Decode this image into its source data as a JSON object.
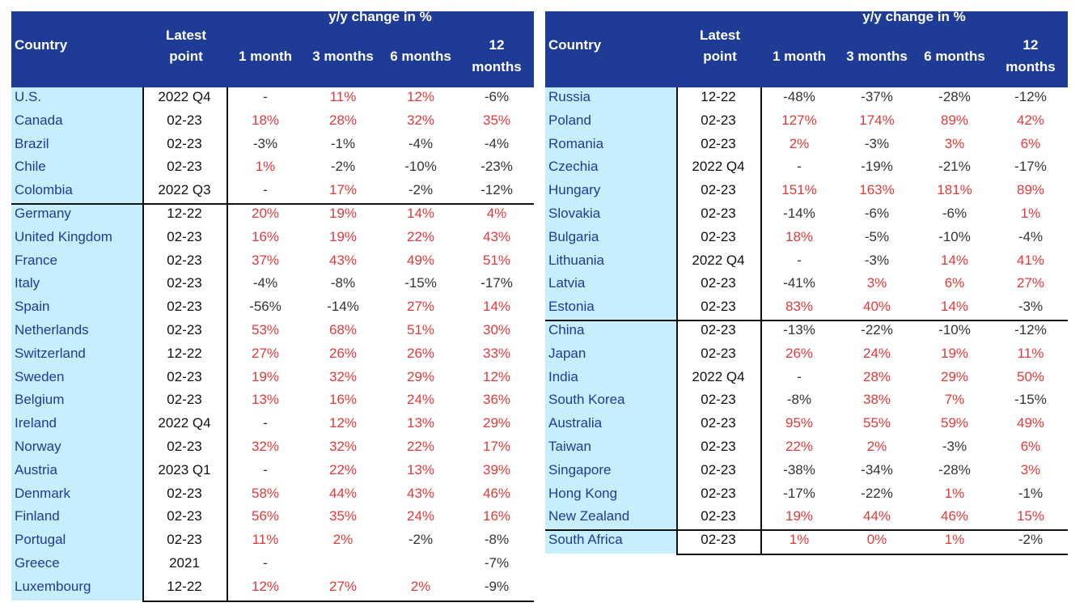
{
  "headers": {
    "country": "Country",
    "latest_line1": "Latest",
    "latest_line2": "point",
    "group": "y/y change in %",
    "m1": "1 month",
    "m3": "3 months",
    "m6": "6 months",
    "m12_line1": "12",
    "m12_line2": "months"
  },
  "left_rows": [
    {
      "country": "U.S.",
      "latest": "2022 Q4",
      "m1": "-",
      "m3": "11%",
      "m6": "12%",
      "m12": "-6%"
    },
    {
      "country": "Canada",
      "latest": "02-23",
      "m1": "18%",
      "m3": "28%",
      "m6": "32%",
      "m12": "35%"
    },
    {
      "country": "Brazil",
      "latest": "02-23",
      "m1": "-3%",
      "m3": "-1%",
      "m6": "-4%",
      "m12": "-4%"
    },
    {
      "country": "Chile",
      "latest": "02-23",
      "m1": "1%",
      "m3": "-2%",
      "m6": "-10%",
      "m12": "-23%"
    },
    {
      "country": "Colombia",
      "latest": "2022 Q3",
      "m1": "-",
      "m3": "17%",
      "m6": "-2%",
      "m12": "-12%"
    },
    {
      "country": "Germany",
      "latest": "12-22",
      "m1": "20%",
      "m3": "19%",
      "m6": "14%",
      "m12": "4%"
    },
    {
      "country": "United Kingdom",
      "latest": "02-23",
      "m1": "16%",
      "m3": "19%",
      "m6": "22%",
      "m12": "43%"
    },
    {
      "country": "France",
      "latest": "02-23",
      "m1": "37%",
      "m3": "43%",
      "m6": "49%",
      "m12": "51%"
    },
    {
      "country": "Italy",
      "latest": "02-23",
      "m1": "-4%",
      "m3": "-8%",
      "m6": "-15%",
      "m12": "-17%"
    },
    {
      "country": "Spain",
      "latest": "02-23",
      "m1": "-56%",
      "m3": "-14%",
      "m6": "27%",
      "m12": "14%"
    },
    {
      "country": "Netherlands",
      "latest": "02-23",
      "m1": "53%",
      "m3": "68%",
      "m6": "51%",
      "m12": "30%"
    },
    {
      "country": "Switzerland",
      "latest": "12-22",
      "m1": "27%",
      "m3": "26%",
      "m6": "26%",
      "m12": "33%"
    },
    {
      "country": "Sweden",
      "latest": "02-23",
      "m1": "19%",
      "m3": "32%",
      "m6": "29%",
      "m12": "12%"
    },
    {
      "country": "Belgium",
      "latest": "02-23",
      "m1": "13%",
      "m3": "16%",
      "m6": "24%",
      "m12": "36%"
    },
    {
      "country": "Ireland",
      "latest": "2022 Q4",
      "m1": "-",
      "m3": "12%",
      "m6": "13%",
      "m12": "29%"
    },
    {
      "country": "Norway",
      "latest": "02-23",
      "m1": "32%",
      "m3": "32%",
      "m6": "22%",
      "m12": "17%"
    },
    {
      "country": "Austria",
      "latest": "2023 Q1",
      "m1": "-",
      "m3": "22%",
      "m6": "13%",
      "m12": "39%"
    },
    {
      "country": "Denmark",
      "latest": "02-23",
      "m1": "58%",
      "m3": "44%",
      "m6": "43%",
      "m12": "46%"
    },
    {
      "country": "Finland",
      "latest": "02-23",
      "m1": "56%",
      "m3": "35%",
      "m6": "24%",
      "m12": "16%"
    },
    {
      "country": "Portugal",
      "latest": "02-23",
      "m1": "11%",
      "m3": "2%",
      "m6": "-2%",
      "m12": "-8%"
    },
    {
      "country": "Greece",
      "latest": "2021",
      "m1": "-",
      "m3": "",
      "m6": "",
      "m12": "-7%"
    },
    {
      "country": "Luxembourg",
      "latest": "12-22",
      "m1": "12%",
      "m3": "27%",
      "m6": "2%",
      "m12": "-9%"
    }
  ],
  "right_rows": [
    {
      "country": "Russia",
      "latest": "12-22",
      "m1": "-48%",
      "m3": "-37%",
      "m6": "-28%",
      "m12": "-12%"
    },
    {
      "country": "Poland",
      "latest": "02-23",
      "m1": "127%",
      "m3": "174%",
      "m6": "89%",
      "m12": "42%"
    },
    {
      "country": "Romania",
      "latest": "02-23",
      "m1": "2%",
      "m3": "-3%",
      "m6": "3%",
      "m12": "6%"
    },
    {
      "country": "Czechia",
      "latest": "2022 Q4",
      "m1": "-",
      "m3": "-19%",
      "m6": "-21%",
      "m12": "-17%"
    },
    {
      "country": "Hungary",
      "latest": "02-23",
      "m1": "151%",
      "m3": "163%",
      "m6": "181%",
      "m12": "89%"
    },
    {
      "country": "Slovakia",
      "latest": "02-23",
      "m1": "-14%",
      "m3": "-6%",
      "m6": "-6%",
      "m12": "1%"
    },
    {
      "country": "Bulgaria",
      "latest": "02-23",
      "m1": "18%",
      "m3": "-5%",
      "m6": "-10%",
      "m12": "-4%"
    },
    {
      "country": "Lithuania",
      "latest": "2022 Q4",
      "m1": "-",
      "m3": "-3%",
      "m6": "14%",
      "m12": "41%"
    },
    {
      "country": "Latvia",
      "latest": "02-23",
      "m1": "-41%",
      "m3": "3%",
      "m6": "6%",
      "m12": "27%"
    },
    {
      "country": "Estonia",
      "latest": "02-23",
      "m1": "83%",
      "m3": "40%",
      "m6": "14%",
      "m12": "-3%"
    },
    {
      "country": "China",
      "latest": "02-23",
      "m1": "-13%",
      "m3": "-22%",
      "m6": "-10%",
      "m12": "-12%"
    },
    {
      "country": "Japan",
      "latest": "02-23",
      "m1": "26%",
      "m3": "24%",
      "m6": "19%",
      "m12": "11%"
    },
    {
      "country": "India",
      "latest": "2022 Q4",
      "m1": "-",
      "m3": "28%",
      "m6": "29%",
      "m12": "50%"
    },
    {
      "country": "South Korea",
      "latest": "02-23",
      "m1": "-8%",
      "m3": "38%",
      "m6": "7%",
      "m12": "-15%"
    },
    {
      "country": "Australia",
      "latest": "02-23",
      "m1": "95%",
      "m3": "55%",
      "m6": "59%",
      "m12": "49%"
    },
    {
      "country": "Taiwan",
      "latest": "02-23",
      "m1": "22%",
      "m3": "2%",
      "m6": "-3%",
      "m12": "6%"
    },
    {
      "country": "Singapore",
      "latest": "02-23",
      "m1": "-38%",
      "m3": "-34%",
      "m6": "-28%",
      "m12": "3%"
    },
    {
      "country": "Hong Kong",
      "latest": "02-23",
      "m1": "-17%",
      "m3": "-22%",
      "m6": "1%",
      "m12": "-1%"
    },
    {
      "country": "New Zealand",
      "latest": "02-23",
      "m1": "19%",
      "m3": "44%",
      "m6": "46%",
      "m12": "15%"
    },
    {
      "country": "South Africa",
      "latest": "02-23",
      "m1": "1%",
      "m3": "0%",
      "m6": "1%",
      "m12": "-2%"
    }
  ],
  "colors": {
    "header_bg": "#1e3c96",
    "country_bg": "#c6eefc",
    "positive": "#e03a3a",
    "negative": "#333333"
  }
}
